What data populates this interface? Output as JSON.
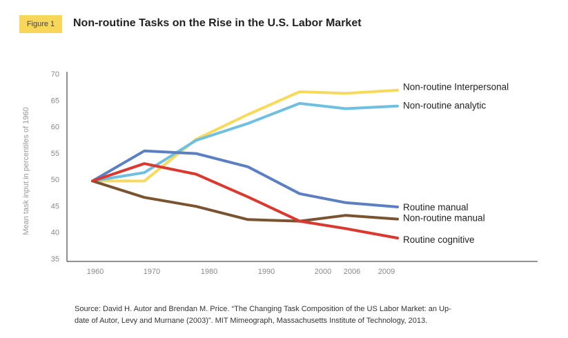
{
  "figure_label": "Figure 1",
  "title": "Non-routine Tasks on the Rise in the U.S. Labor Market",
  "source_text": "Source: David H. Autor and Brendan M. Price. “The Changing Task Composition of the US Labor Market: an Up-date of Autor, Levy and Murnane (2003)”. MIT Mimeograph, Massachusetts Institute of Technology, 2013.",
  "colors": {
    "non_routine_interpersonal": "#f8d95a",
    "non_routine_analytic": "#6fbfe0",
    "routine_manual": "#5b7fc2",
    "non_routine_manual": "#7a5431",
    "routine_cognitive": "#d9392f",
    "axis": "#222222",
    "tick_text": "#888888"
  },
  "chart_data": {
    "type": "line",
    "title": "Non-routine Tasks on the Rise in the U.S. Labor Market",
    "xlabel": "",
    "ylabel": "Mean task input in percentiles of 1960",
    "x": [
      "1960",
      "1970",
      "1980",
      "1990",
      "2000",
      "2006",
      "2009"
    ],
    "ylim": [
      35,
      70
    ],
    "yticks": [
      35,
      40,
      45,
      50,
      55,
      60,
      65,
      70
    ],
    "grid": false,
    "legend": "direct labels at line ends",
    "series": [
      {
        "name": "Non-routine Interpersonal",
        "color": "#f8d95a",
        "points": [
          [
            1960,
            49.7
          ],
          [
            1969,
            49.7
          ],
          [
            1978,
            57.6
          ],
          [
            1987,
            62.3
          ],
          [
            1996,
            66.6
          ],
          [
            2004,
            66.3
          ],
          [
            2013,
            66.9
          ]
        ]
      },
      {
        "name": "Non-routine analytic",
        "color": "#6fbfe0",
        "points": [
          [
            1960,
            49.7
          ],
          [
            1969,
            51.3
          ],
          [
            1978,
            57.4
          ],
          [
            1987,
            60.6
          ],
          [
            1996,
            64.4
          ],
          [
            2004,
            63.4
          ],
          [
            2013,
            63.9
          ]
        ]
      },
      {
        "name": "Routine manual",
        "color": "#5b7fc2",
        "points": [
          [
            1960,
            49.7
          ],
          [
            1969,
            55.4
          ],
          [
            1978,
            54.9
          ],
          [
            1987,
            52.4
          ],
          [
            1996,
            47.3
          ],
          [
            2004,
            45.6
          ],
          [
            2013,
            44.8
          ]
        ]
      },
      {
        "name": "Non-routine manual",
        "color": "#7a5431",
        "points": [
          [
            1960,
            49.7
          ],
          [
            1969,
            46.6
          ],
          [
            1978,
            44.9
          ],
          [
            1987,
            42.4
          ],
          [
            1996,
            42.1
          ],
          [
            2004,
            43.2
          ],
          [
            2013,
            42.5
          ]
        ]
      },
      {
        "name": "Routine cognitive",
        "color": "#d9392f",
        "points": [
          [
            1960,
            49.7
          ],
          [
            1969,
            53.0
          ],
          [
            1978,
            51.0
          ],
          [
            1987,
            46.7
          ],
          [
            1996,
            42.1
          ],
          [
            2004,
            40.7
          ],
          [
            2013,
            38.9
          ]
        ]
      }
    ]
  }
}
